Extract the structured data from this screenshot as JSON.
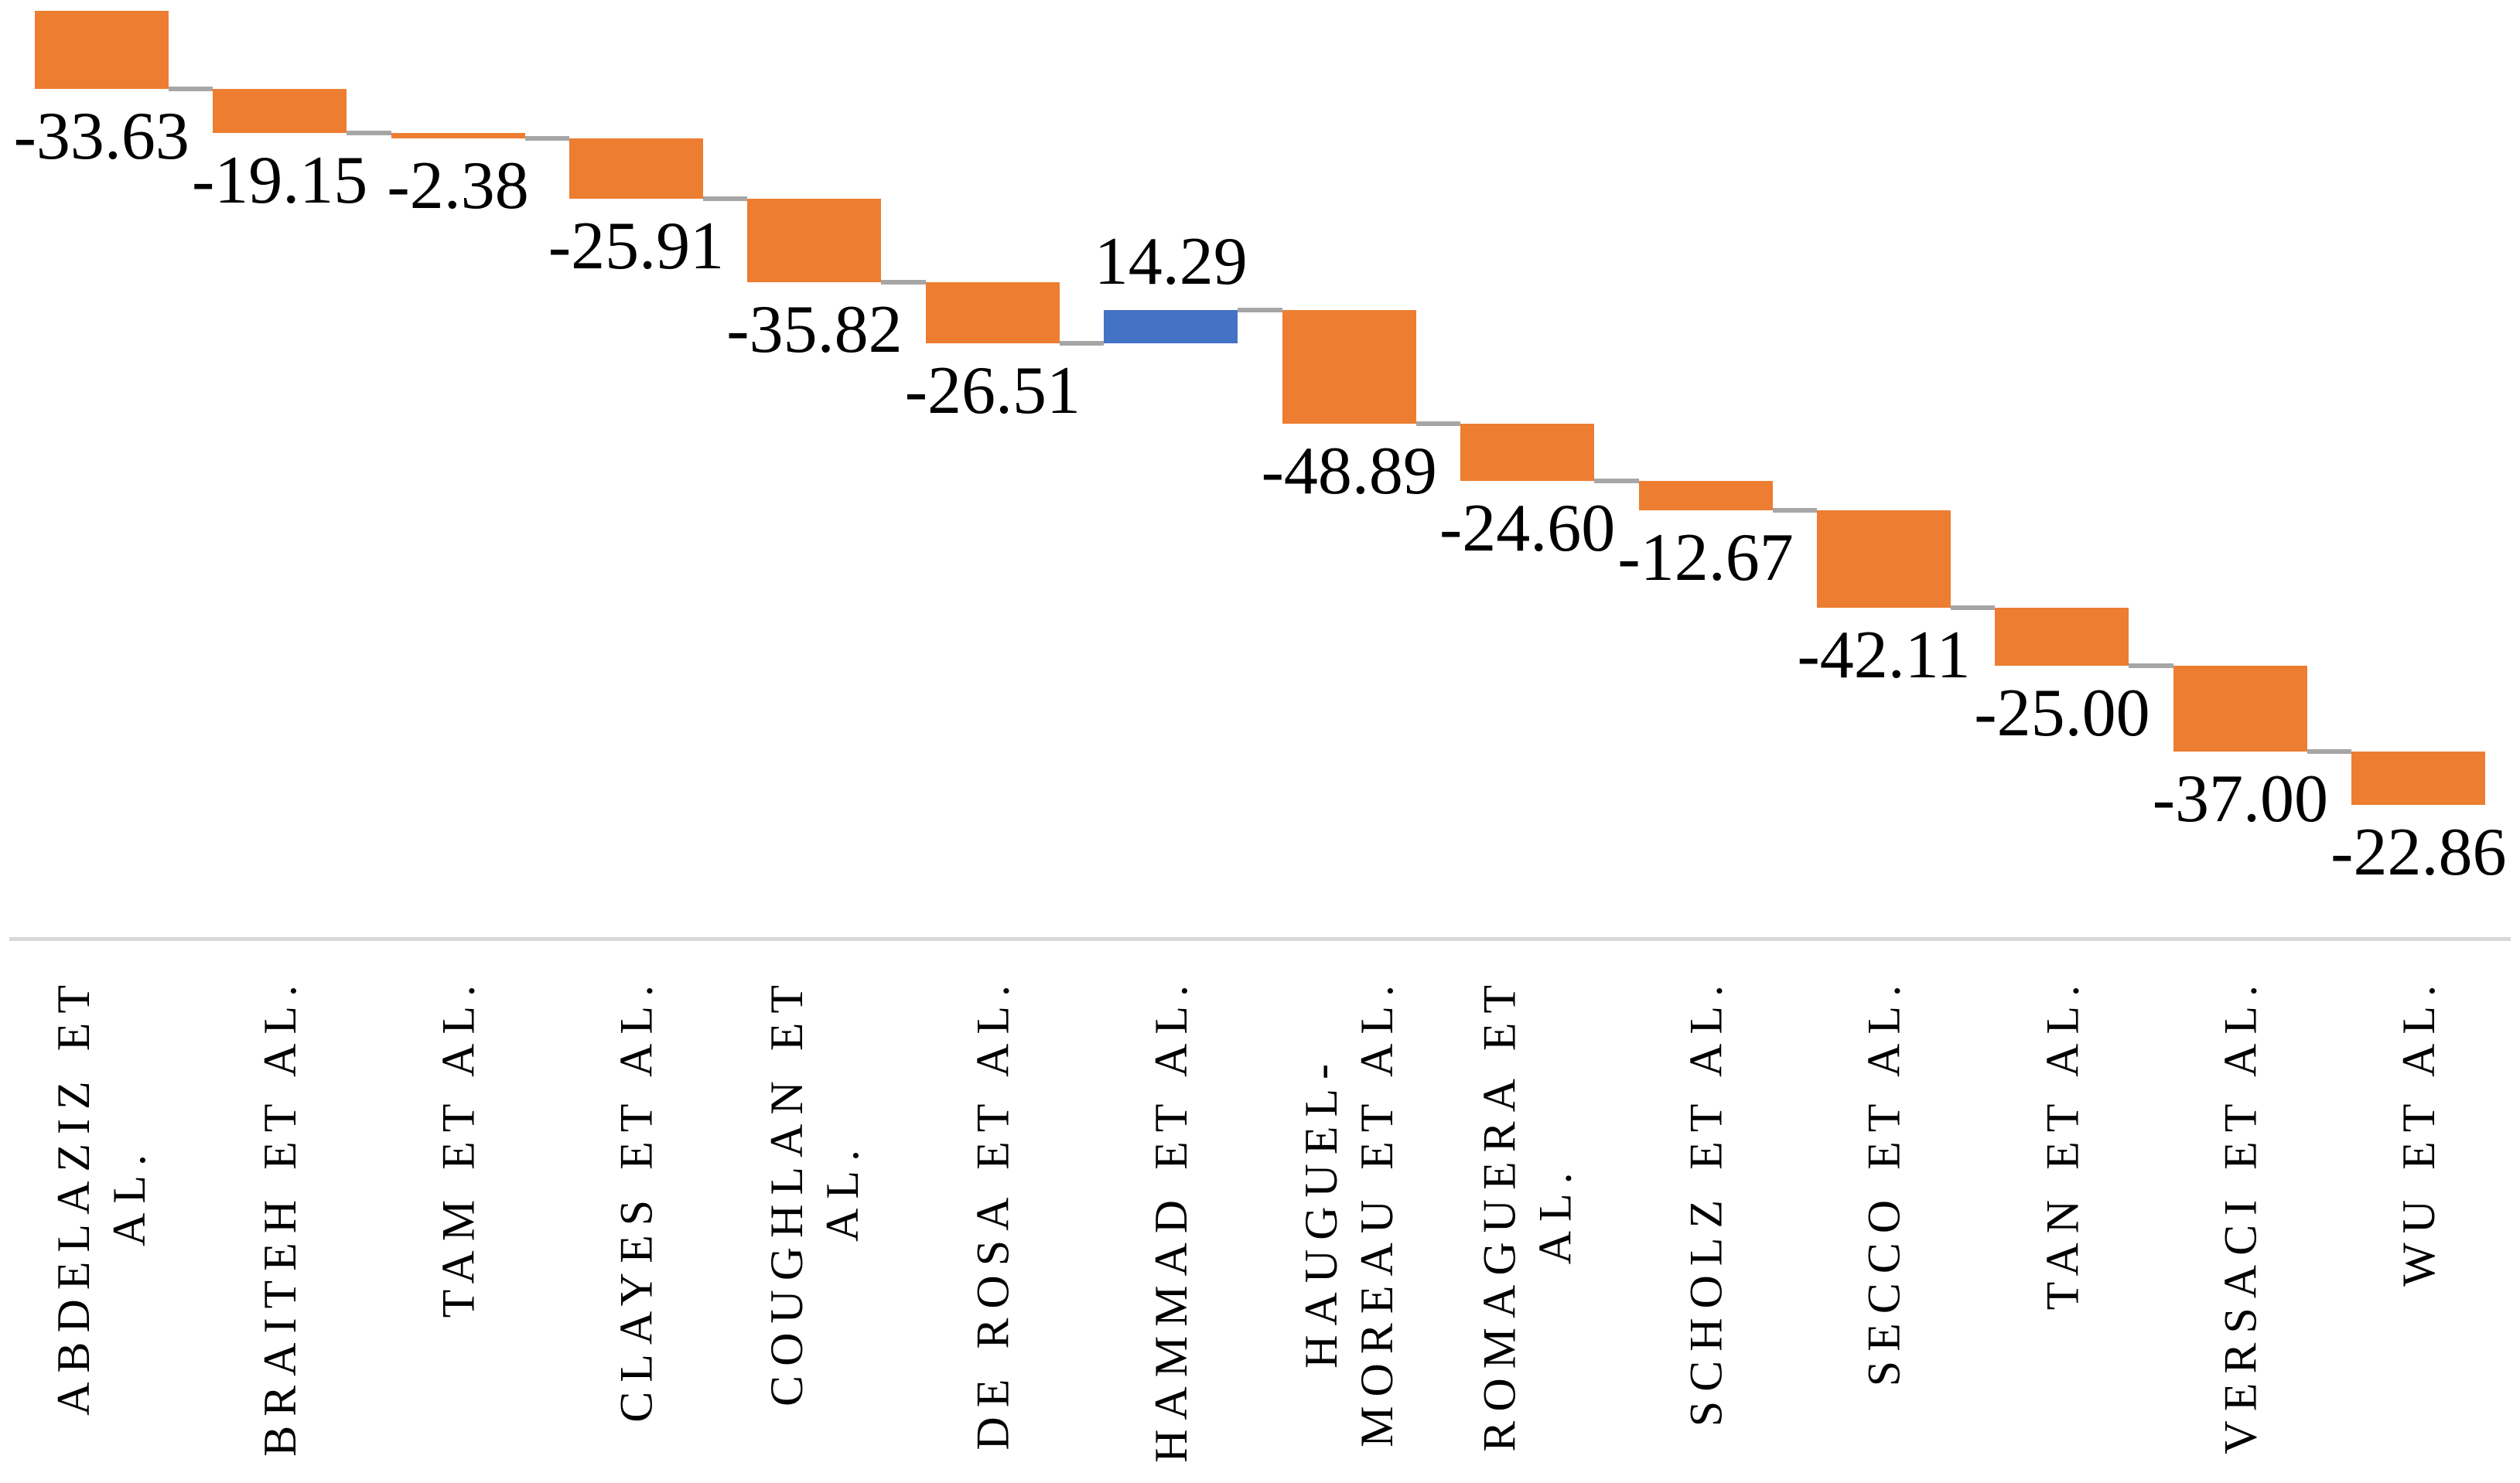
{
  "chart_data": {
    "type": "bar",
    "subtype": "waterfall",
    "title": "",
    "xlabel": "",
    "ylabel": "",
    "axis_ticks_visible": false,
    "grid": false,
    "legend": "none",
    "ylim": [
      -400,
      0
    ],
    "categories": [
      "ABDELAZIZ ET AL.",
      "BRAITEH ET AL.",
      "TAM ET AL.",
      "CLAYES ET AL.",
      "COUGHLAN ET AL.",
      "DE ROSA ET AL.",
      "HAMMAD ET AL.",
      "HAUGUEL-MOREAU ET AL.",
      "ROMAGUERA ET AL.",
      "SCHOLZ ET AL.",
      "SECCO ET AL.",
      "TAN ET AL.",
      "VERSACI ET AL.",
      "WU ET AL."
    ],
    "category_label_lines": [
      [
        "ABDELAZIZ ET",
        "AL."
      ],
      [
        "BRAITEH ET AL."
      ],
      [
        "TAM ET AL."
      ],
      [
        "CLAYES ET AL."
      ],
      [
        "COUGHLAN ET",
        "AL."
      ],
      [
        "DE ROSA ET AL."
      ],
      [
        "HAMMAD ET AL."
      ],
      [
        "HAUGUEL-",
        "MOREAU ET AL."
      ],
      [
        "ROMAGUERA ET",
        "AL."
      ],
      [
        "SCHOLZ ET AL."
      ],
      [
        "SECCO ET AL."
      ],
      [
        "TAN ET AL."
      ],
      [
        "VERSACI ET AL."
      ],
      [
        "WU ET AL."
      ]
    ],
    "values": [
      -33.63,
      -19.15,
      -2.38,
      -25.91,
      -35.82,
      -26.51,
      14.29,
      -48.89,
      -24.6,
      -12.67,
      -42.11,
      -25.0,
      -37.0,
      -22.86
    ],
    "data_labels": [
      "-33.63",
      "-19.15",
      "-2.38",
      "-25.91",
      "-35.82",
      "-26.51",
      "14.29",
      "-48.89",
      "-24.60",
      "-12.67",
      "-42.11",
      "-25.00",
      "-37.00",
      "-22.86"
    ],
    "colors": {
      "decrease_bar": "#ED7D31",
      "increase_bar": "#4472C4",
      "connector": "#A6A6A6",
      "axis_line": "#D9D9D9",
      "label_text": "#000000"
    }
  }
}
